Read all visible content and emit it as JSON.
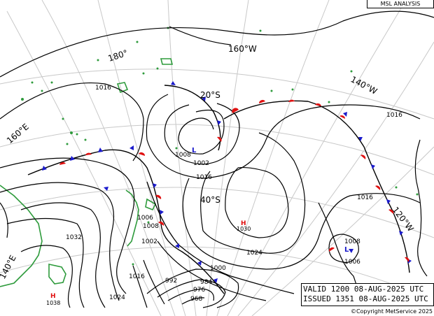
{
  "title": "MSL ANALYSIS",
  "valid": "VALID  1200 08-AUG-2025 UTC",
  "issued": "ISSUED 1351 08-AUG-2025 UTC",
  "copyright": "©Copyright MetService 2025",
  "colors": {
    "land": "#2e9b3c",
    "warm_front": "#e01010",
    "cold_front": "#1a1acc",
    "graticule": "#c8c8c8"
  },
  "graticule_labels": [
    "180°",
    "160°W",
    "140°W",
    "120°W",
    "160°E",
    "140°E",
    "20°S",
    "40°S"
  ],
  "isobar_labels": [
    "1016",
    "1008",
    "1002",
    "1016",
    "1016",
    "1032",
    "1006",
    "1008",
    "1002",
    "1016",
    "1024",
    "1024",
    "1000",
    "992",
    "984",
    "976",
    "968",
    "1008",
    "1006"
  ],
  "pressure_centres": [
    {
      "type": "H",
      "value": "1030"
    },
    {
      "type": "H",
      "value": "1038"
    },
    {
      "type": "L",
      "value": "1002"
    },
    {
      "type": "L",
      "value": "1006"
    }
  ]
}
